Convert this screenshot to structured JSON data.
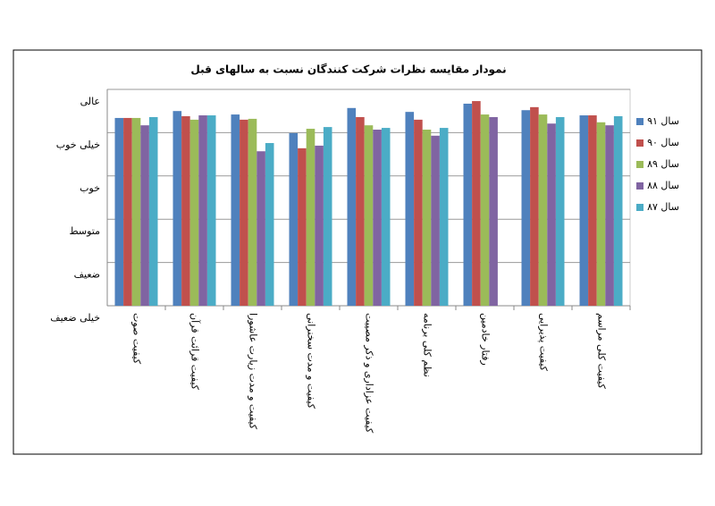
{
  "chart_data": {
    "type": "bar",
    "title": "نمودار مقایسه نظرات شرکت کنندگان نسبت به سالهای قبل",
    "categories": [
      "کیفیت صوت",
      "کیفیت قرائت قرآن",
      "کیفیت و مدت زیارت عاشورا",
      "کیفیت و مدت سخنرانی",
      "کیفیت عزاداری و ذکر مصیبت",
      "نظم کلی برنامه",
      "رفتار خادمین",
      "کیفیت پذیرایی",
      "کیفیت کلی مراسم"
    ],
    "series": [
      {
        "name": "سال ۹۱",
        "color": "#4f81bd",
        "values": [
          4.34,
          4.5,
          4.42,
          3.99,
          4.57,
          4.48,
          4.67,
          4.52,
          4.4
        ]
      },
      {
        "name": "سال ۹۰",
        "color": "#c0504d",
        "values": [
          4.34,
          4.38,
          4.3,
          3.64,
          4.36,
          4.3,
          4.73,
          4.59,
          4.4
        ]
      },
      {
        "name": "سال ۸۹",
        "color": "#9bbb59",
        "values": [
          4.34,
          4.3,
          4.32,
          4.09,
          4.17,
          4.07,
          4.42,
          4.42,
          4.24
        ]
      },
      {
        "name": "سال ۸۸",
        "color": "#8064a2",
        "values": [
          4.17,
          4.4,
          3.57,
          3.7,
          4.07,
          3.93,
          4.36,
          4.21,
          4.17
        ]
      },
      {
        "name": "سال ۸۷",
        "color": "#4bacc6",
        "values": [
          4.36,
          4.4,
          3.76,
          4.13,
          4.11,
          4.11,
          null,
          4.36,
          4.38
        ]
      }
    ],
    "ylim": [
      0,
      5
    ],
    "yticks": [
      {
        "value": 0,
        "label": "خیلی ضعیف"
      },
      {
        "value": 1,
        "label": "ضعیف"
      },
      {
        "value": 2,
        "label": "متوسط"
      },
      {
        "value": 3,
        "label": "خوب"
      },
      {
        "value": 4,
        "label": "خیلی خوب"
      },
      {
        "value": 5,
        "label": "عالی"
      }
    ],
    "grid": true,
    "legend": "right"
  }
}
